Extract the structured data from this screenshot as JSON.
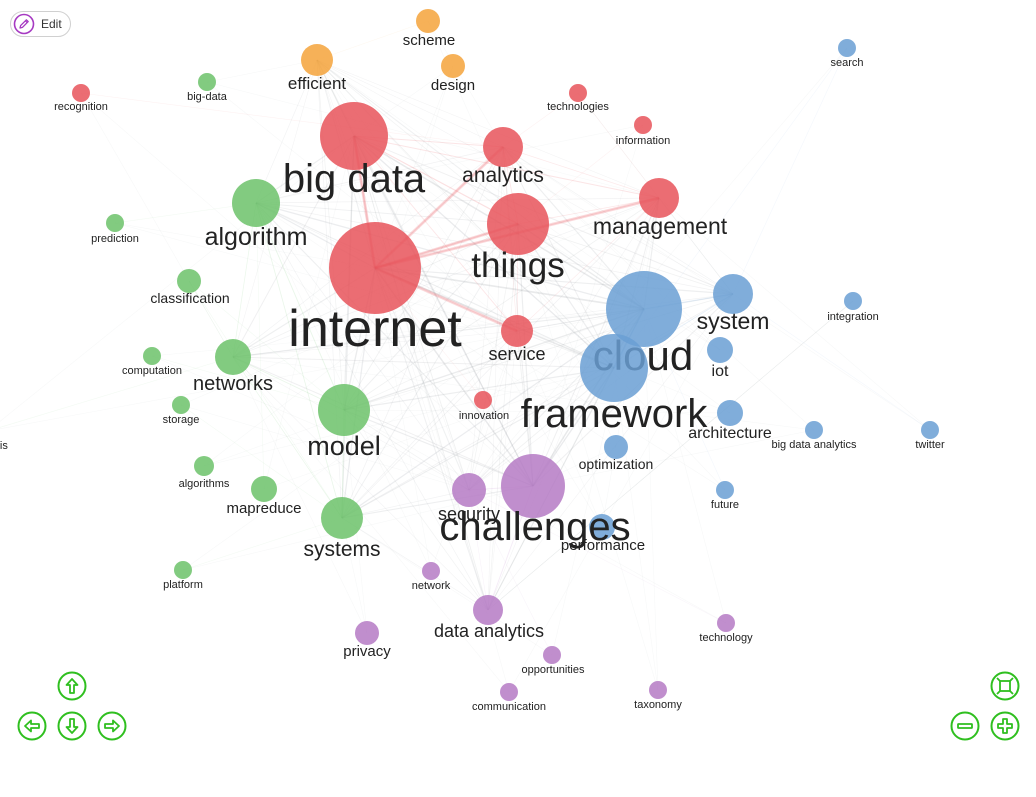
{
  "toolbar": {
    "edit_label": "Edit"
  },
  "navigation": {
    "up_icon": "arrow-up-icon",
    "left_icon": "arrow-left-icon",
    "down_icon": "arrow-down-icon",
    "right_icon": "arrow-right-icon",
    "fit_icon": "zoom-fit-icon",
    "zoom_out_icon": "zoom-out-icon",
    "zoom_in_icon": "zoom-in-icon",
    "button_color": "#2fbf1f"
  },
  "clusters": {
    "red": "#e8535a",
    "orange": "#f5a33b",
    "green": "#6cc26a",
    "blue": "#6a9fd4",
    "purple": "#b57ac4"
  },
  "nodes": [
    {
      "label": "scheme",
      "cluster": "orange",
      "weight": 2
    },
    {
      "label": "efficient",
      "cluster": "orange",
      "weight": 3
    },
    {
      "label": "design",
      "cluster": "orange",
      "weight": 2
    },
    {
      "label": "recognition",
      "cluster": "red",
      "weight": 1
    },
    {
      "label": "technologies",
      "cluster": "red",
      "weight": 1
    },
    {
      "label": "information",
      "cluster": "red",
      "weight": 1
    },
    {
      "label": "big data",
      "cluster": "red",
      "weight": 8
    },
    {
      "label": "analytics",
      "cluster": "red",
      "weight": 4
    },
    {
      "label": "management",
      "cluster": "red",
      "weight": 4
    },
    {
      "label": "things",
      "cluster": "red",
      "weight": 6
    },
    {
      "label": "internet",
      "cluster": "red",
      "weight": 10
    },
    {
      "label": "service",
      "cluster": "red",
      "weight": 3
    },
    {
      "label": "innovation",
      "cluster": "red",
      "weight": 1
    },
    {
      "label": "big-data",
      "cluster": "green",
      "weight": 1
    },
    {
      "label": "prediction",
      "cluster": "green",
      "weight": 1
    },
    {
      "label": "algorithm",
      "cluster": "green",
      "weight": 5
    },
    {
      "label": "classification",
      "cluster": "green",
      "weight": 2
    },
    {
      "label": "computation",
      "cluster": "green",
      "weight": 1
    },
    {
      "label": "networks",
      "cluster": "green",
      "weight": 4
    },
    {
      "label": "storage",
      "cluster": "green",
      "weight": 1
    },
    {
      "label": "model",
      "cluster": "green",
      "weight": 6
    },
    {
      "label": "analysis",
      "cluster": "green",
      "weight": 1
    },
    {
      "label": "algorithms",
      "cluster": "green",
      "weight": 1
    },
    {
      "label": "mapreduce",
      "cluster": "green",
      "weight": 2
    },
    {
      "label": "systems",
      "cluster": "green",
      "weight": 5
    },
    {
      "label": "platform",
      "cluster": "green",
      "weight": 1
    },
    {
      "label": "search",
      "cluster": "blue",
      "weight": 1
    },
    {
      "label": "system",
      "cluster": "blue",
      "weight": 4
    },
    {
      "label": "integration",
      "cluster": "blue",
      "weight": 1
    },
    {
      "label": "cloud",
      "cluster": "blue",
      "weight": 10
    },
    {
      "label": "iot",
      "cluster": "blue",
      "weight": 2
    },
    {
      "label": "framework",
      "cluster": "blue",
      "weight": 8
    },
    {
      "label": "architecture",
      "cluster": "blue",
      "weight": 2
    },
    {
      "label": "big data analytics",
      "cluster": "blue",
      "weight": 1
    },
    {
      "label": "twitter",
      "cluster": "blue",
      "weight": 1
    },
    {
      "label": "optimization",
      "cluster": "blue",
      "weight": 2
    },
    {
      "label": "future",
      "cluster": "blue",
      "weight": 1
    },
    {
      "label": "performance",
      "cluster": "blue",
      "weight": 2
    },
    {
      "label": "challenges",
      "cluster": "purple",
      "weight": 8
    },
    {
      "label": "security",
      "cluster": "purple",
      "weight": 3
    },
    {
      "label": "network",
      "cluster": "purple",
      "weight": 1
    },
    {
      "label": "data analytics",
      "cluster": "purple",
      "weight": 3
    },
    {
      "label": "privacy",
      "cluster": "purple",
      "weight": 2
    },
    {
      "label": "technology",
      "cluster": "purple",
      "weight": 1
    },
    {
      "label": "opportunities",
      "cluster": "purple",
      "weight": 1
    },
    {
      "label": "communication",
      "cluster": "purple",
      "weight": 1
    },
    {
      "label": "taxonomy",
      "cluster": "purple",
      "weight": 1
    }
  ]
}
